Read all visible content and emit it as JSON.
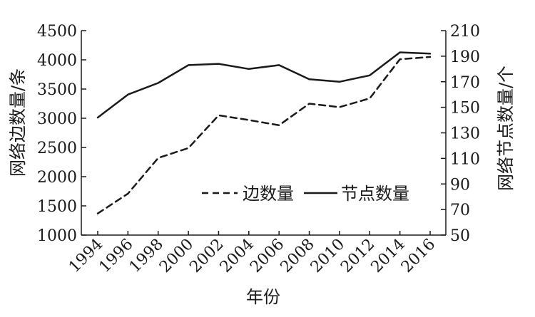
{
  "chart_data": {
    "type": "line",
    "xlabel": "年份",
    "ylabel_left": "网络边数量/条",
    "ylabel_right": "网络节点数量/个",
    "x": [
      "1994",
      "1996",
      "1998",
      "2000",
      "2002",
      "2004",
      "2006",
      "2008",
      "2010",
      "2012",
      "2014",
      "2016"
    ],
    "ylim_left": [
      1000,
      4500
    ],
    "yticks_left": [
      "1000",
      "1500",
      "2000",
      "2500",
      "3000",
      "3500",
      "4000",
      "4500"
    ],
    "ylim_right": [
      50,
      210
    ],
    "yticks_right": [
      "50",
      "70",
      "90",
      "110",
      "130",
      "150",
      "170",
      "190",
      "210"
    ],
    "grid": false,
    "legend_position": "lower-right",
    "series": [
      {
        "name": "边数量",
        "axis": "left",
        "style": "dashed",
        "color": "#1a1a1a",
        "values": [
          1370,
          1710,
          2320,
          2490,
          3050,
          2970,
          2880,
          3250,
          3190,
          3340,
          4010,
          4050
        ]
      },
      {
        "name": "节点数量",
        "axis": "right",
        "style": "solid",
        "color": "#1a1a1a",
        "values": [
          142,
          160,
          169,
          183,
          184,
          180,
          183,
          172,
          170,
          175,
          193,
          192
        ]
      }
    ]
  }
}
